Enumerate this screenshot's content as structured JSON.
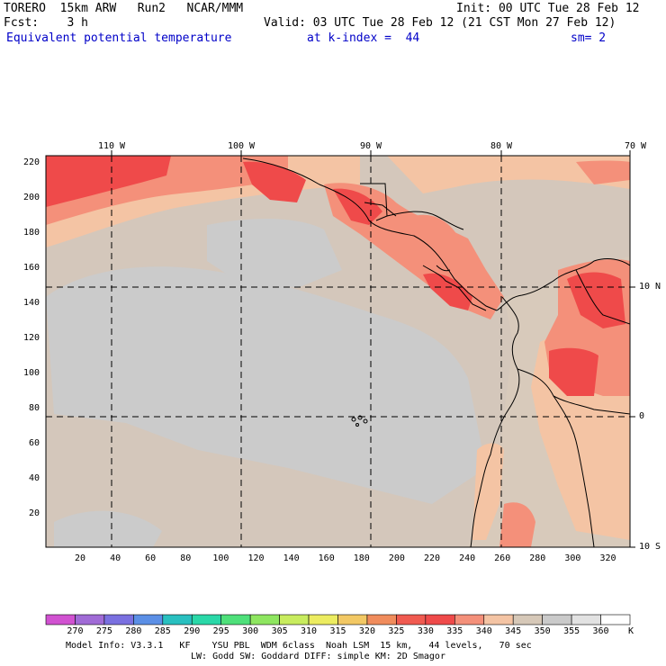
{
  "header": {
    "model": "TORERO  15km ARW   Run2   NCAR/MMM",
    "init": "Init: 00 UTC Tue 28 Feb 12",
    "fcst_label": "Fcst:    3 h",
    "valid": "Valid: 03 UTC Tue 28 Feb 12 (21 CST Mon 27 Feb 12)",
    "field": "Equivalent potential temperature",
    "level": "at k-index =  44",
    "smooth": "sm= 2"
  },
  "axes": {
    "top_lon": [
      "110 W",
      "100 W",
      "90 W",
      "80 W",
      "70 W"
    ],
    "right_lat": [
      "10 N",
      "0",
      "10 S"
    ],
    "left_grid": [
      "220",
      "200",
      "180",
      "160",
      "140",
      "120",
      "100",
      "80",
      "60",
      "40",
      "20"
    ],
    "bottom_grid": [
      "20",
      "40",
      "60",
      "80",
      "100",
      "120",
      "140",
      "160",
      "180",
      "200",
      "220",
      "240",
      "260",
      "280",
      "300",
      "320"
    ]
  },
  "colorbar": {
    "labels": [
      "270",
      "275",
      "280",
      "285",
      "290",
      "295",
      "300",
      "305",
      "310",
      "315",
      "320",
      "325",
      "330",
      "335",
      "340",
      "345",
      "350",
      "355",
      "360"
    ],
    "unit": "K",
    "colors": [
      "#d152d1",
      "#a06bd6",
      "#7a70e0",
      "#5b8fe6",
      "#29c0c0",
      "#2ad8a8",
      "#4ee07a",
      "#8ee660",
      "#c8ec5e",
      "#ecec60",
      "#f2c864",
      "#f08c5c",
      "#f05a50",
      "#ef4a4a",
      "#f4907a",
      "#f4c4a4",
      "#d6c8b8",
      "#cacaca",
      "#e2e2e2",
      "#ffffff"
    ]
  },
  "footer": {
    "line1": "Model Info: V3.3.1   KF    YSU PBL  WDM 6class  Noah LSM  15 km,   44 levels,   70 sec",
    "line2": "LW: Godd SW: Goddard DIFF: simple KM: 2D Smagor"
  }
}
